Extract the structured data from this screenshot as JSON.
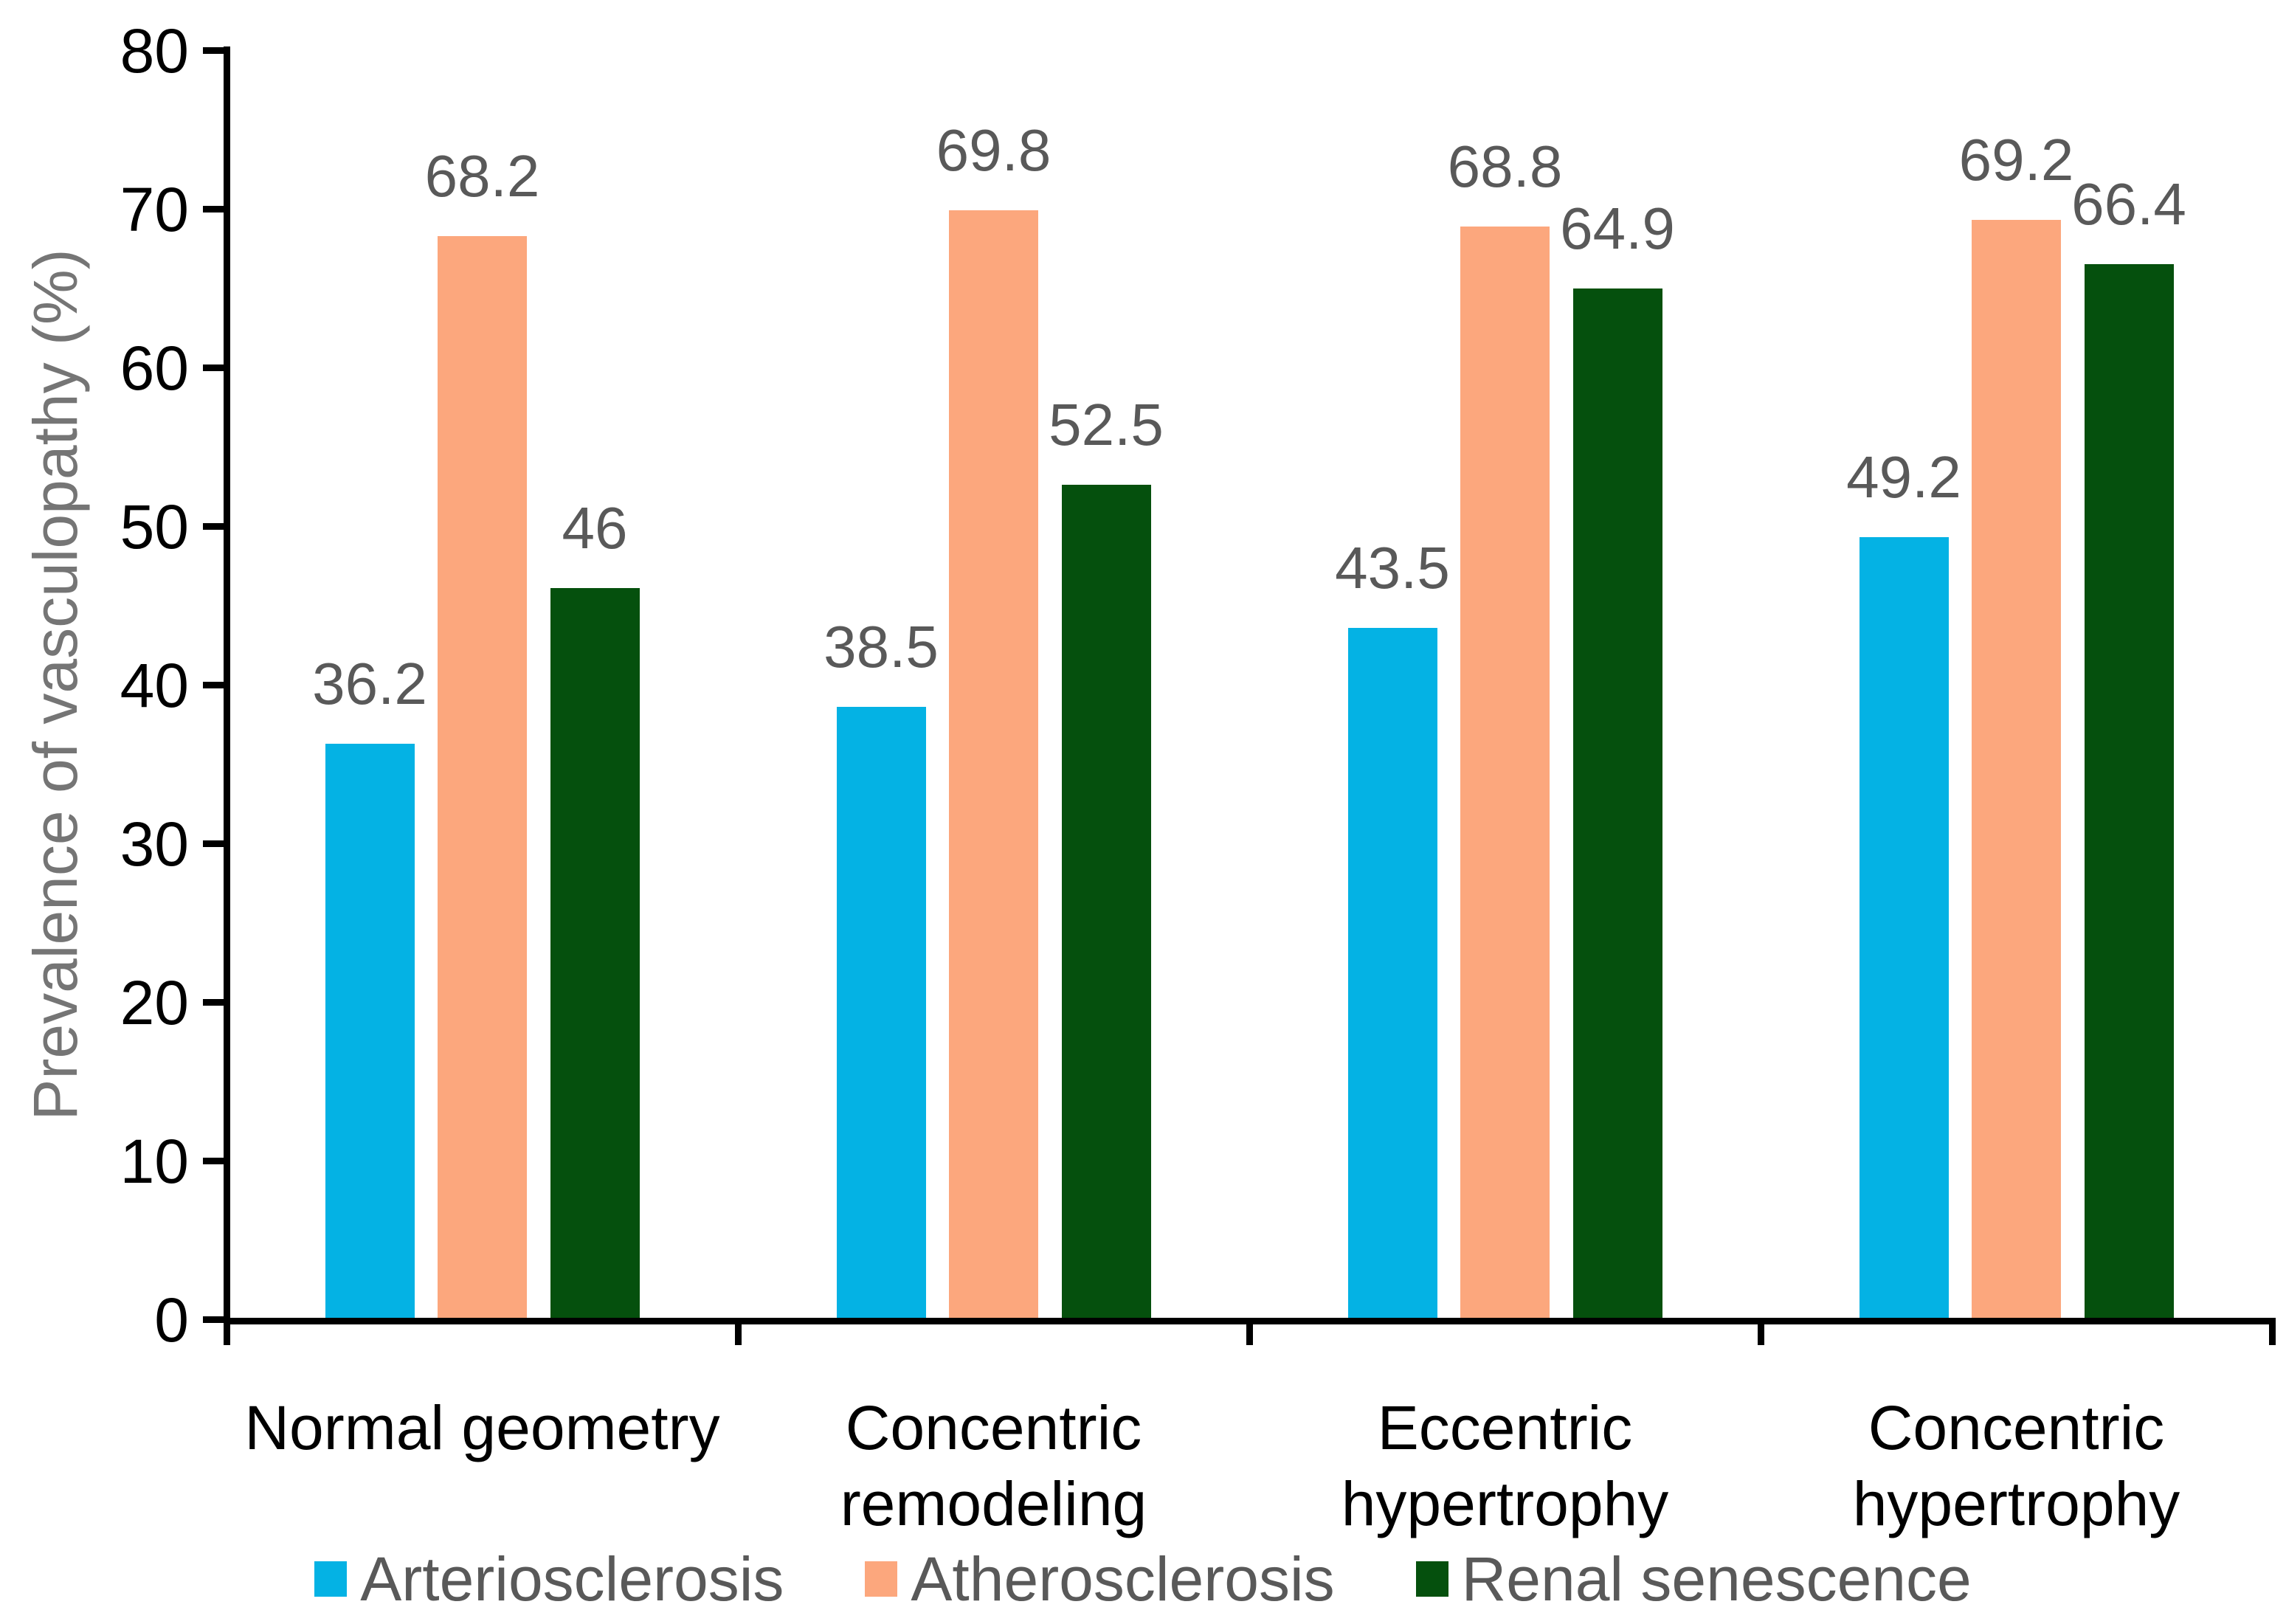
{
  "chart_data": {
    "type": "bar",
    "title": "",
    "xlabel": "",
    "ylabel": "Prevalence of vasculopathy (%)",
    "ylim": [
      0,
      80
    ],
    "yticks": [
      "0",
      "10",
      "20",
      "30",
      "40",
      "50",
      "60",
      "70",
      "80"
    ],
    "grid": false,
    "legend_position": "bottom",
    "categories": [
      {
        "name": "Normal geometry",
        "lines": [
          "Normal geometry"
        ]
      },
      {
        "name": "Concentric remodeling",
        "lines": [
          "Concentric",
          "remodeling"
        ]
      },
      {
        "name": "Eccentric hypertrophy",
        "lines": [
          "Eccentric",
          "hypertrophy"
        ]
      },
      {
        "name": "Concentric hypertrophy",
        "lines": [
          "Concentric",
          "hypertrophy"
        ]
      }
    ],
    "series": [
      {
        "name": "Arteriosclerosis",
        "color": "#04B2E4",
        "values": [
          36.2,
          38.5,
          43.5,
          49.2
        ],
        "labels": [
          "36.2",
          "38.5",
          "43.5",
          "49.2"
        ]
      },
      {
        "name": "Atherosclerosis",
        "color": "#FCA77D",
        "values": [
          68.2,
          69.8,
          68.8,
          69.2
        ],
        "labels": [
          "68.2",
          "69.8",
          "68.8",
          "69.2"
        ]
      },
      {
        "name": "Renal senescence",
        "color": "#05500D",
        "values": [
          46,
          52.5,
          64.9,
          66.4
        ],
        "labels": [
          "46",
          "52.5",
          "64.9",
          "66.4"
        ]
      }
    ],
    "colors": {
      "axis": "#000000",
      "tick_label": "#000000",
      "data_label": "#595959",
      "category_label": "#000000",
      "axis_title": "#757575",
      "legend_label": "#595959",
      "background": "#FFFFFF"
    }
  }
}
